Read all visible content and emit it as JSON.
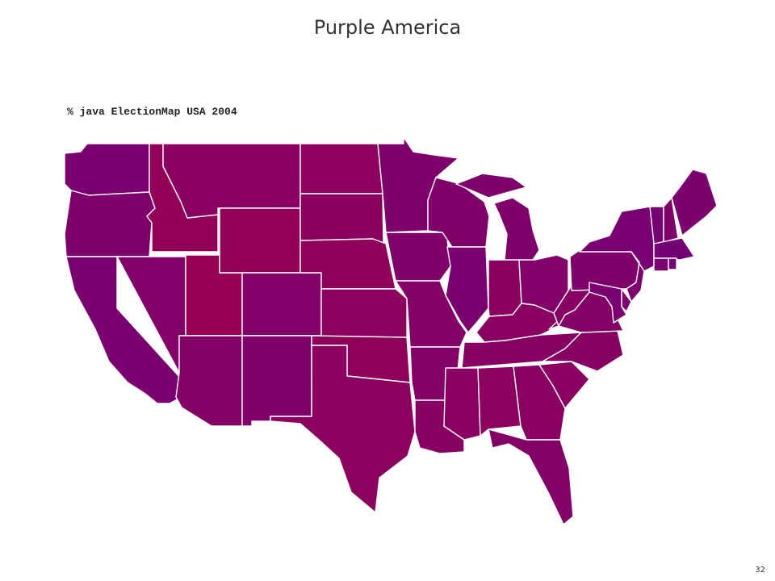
{
  "slide": {
    "title": "Purple America",
    "command": "% java ElectionMap USA 2004",
    "page_number": "32"
  },
  "palette": {
    "republican": "#b0003a",
    "democrat": "#50009a",
    "border": "#ffffff"
  },
  "map": {
    "election_year": "2004",
    "states": [
      {
        "id": "WA",
        "dem_share": 0.55
      },
      {
        "id": "OR",
        "dem_share": 0.53
      },
      {
        "id": "CA",
        "dem_share": 0.56
      },
      {
        "id": "ID",
        "dem_share": 0.31
      },
      {
        "id": "NV",
        "dem_share": 0.48
      },
      {
        "id": "UT",
        "dem_share": 0.27
      },
      {
        "id": "AZ",
        "dem_share": 0.45
      },
      {
        "id": "MT",
        "dem_share": 0.4
      },
      {
        "id": "WY",
        "dem_share": 0.3
      },
      {
        "id": "CO",
        "dem_share": 0.48
      },
      {
        "id": "NM",
        "dem_share": 0.5
      },
      {
        "id": "ND",
        "dem_share": 0.36
      },
      {
        "id": "SD",
        "dem_share": 0.39
      },
      {
        "id": "NE",
        "dem_share": 0.33
      },
      {
        "id": "KS",
        "dem_share": 0.37
      },
      {
        "id": "OK",
        "dem_share": 0.34
      },
      {
        "id": "TX",
        "dem_share": 0.38
      },
      {
        "id": "MN",
        "dem_share": 0.51
      },
      {
        "id": "IA",
        "dem_share": 0.5
      },
      {
        "id": "MO",
        "dem_share": 0.46
      },
      {
        "id": "AR",
        "dem_share": 0.45
      },
      {
        "id": "LA",
        "dem_share": 0.42
      },
      {
        "id": "WI",
        "dem_share": 0.5
      },
      {
        "id": "IL",
        "dem_share": 0.55
      },
      {
        "id": "MI",
        "dem_share": 0.51
      },
      {
        "id": "IN",
        "dem_share": 0.39
      },
      {
        "id": "OH",
        "dem_share": 0.49
      },
      {
        "id": "KY",
        "dem_share": 0.4
      },
      {
        "id": "TN",
        "dem_share": 0.43
      },
      {
        "id": "MS",
        "dem_share": 0.4
      },
      {
        "id": "AL",
        "dem_share": 0.37
      },
      {
        "id": "GA",
        "dem_share": 0.41
      },
      {
        "id": "FL",
        "dem_share": 0.47
      },
      {
        "id": "SC",
        "dem_share": 0.41
      },
      {
        "id": "NC",
        "dem_share": 0.44
      },
      {
        "id": "VA",
        "dem_share": 0.46
      },
      {
        "id": "WV",
        "dem_share": 0.43
      },
      {
        "id": "PA",
        "dem_share": 0.51
      },
      {
        "id": "NY",
        "dem_share": 0.58
      },
      {
        "id": "VT",
        "dem_share": 0.59
      },
      {
        "id": "NH",
        "dem_share": 0.5
      },
      {
        "id": "ME",
        "dem_share": 0.54
      },
      {
        "id": "MA",
        "dem_share": 0.62
      },
      {
        "id": "CT",
        "dem_share": 0.54
      },
      {
        "id": "RI",
        "dem_share": 0.59
      },
      {
        "id": "NJ",
        "dem_share": 0.53
      },
      {
        "id": "DE",
        "dem_share": 0.53
      },
      {
        "id": "MD",
        "dem_share": 0.56
      }
    ]
  }
}
